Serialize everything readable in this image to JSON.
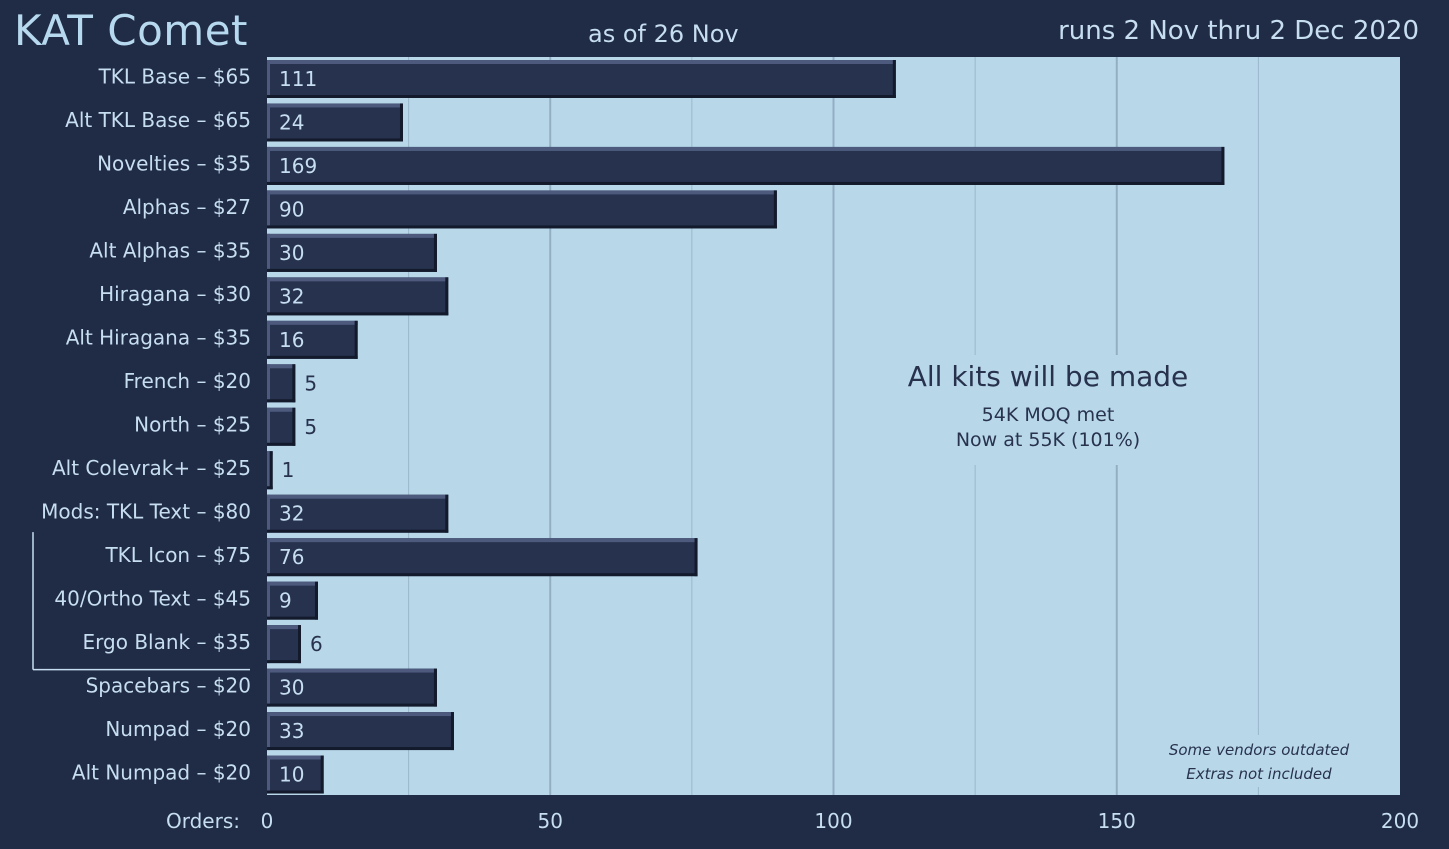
{
  "header": {
    "title": "KAT Comet",
    "subtitle": "as of 26 Nov",
    "runs": "runs 2 Nov thru 2 Dec 2020"
  },
  "chart_data": {
    "type": "bar",
    "orientation": "horizontal",
    "title": "KAT Comet",
    "xlabel": "Orders:",
    "xlim": [
      0,
      200
    ],
    "xticks": [
      0,
      50,
      100,
      150,
      200
    ],
    "grid": true,
    "categories": [
      "TKL Base – $65",
      "Alt TKL Base – $65",
      "Novelties – $35",
      "Alphas – $27",
      "Alt Alphas – $35",
      "Hiragana – $30",
      "Alt Hiragana – $35",
      "French – $20",
      "North – $25",
      "Alt Colevrak+  – $25",
      "Mods:  TKL Text – $80",
      "TKL Icon – $75",
      "40/Ortho Text – $45",
      "Ergo Blank – $35",
      "Spacebars – $20",
      "Numpad – $20",
      "Alt Numpad – $20"
    ],
    "values": [
      111,
      24,
      169,
      90,
      30,
      32,
      16,
      5,
      5,
      1,
      32,
      76,
      9,
      6,
      30,
      33,
      10
    ],
    "annotations": {
      "headline": "All kits will be made",
      "line1": "54K MOQ met",
      "line2": "Now at 55K (101%)",
      "footnote1": "Some vendors outdated",
      "footnote2": "Extras not included"
    },
    "colors": {
      "background": "#202b45",
      "plot_bg": "#b8d8ea",
      "bar": "#27324f",
      "bar_highlight": "#4d5a7d",
      "bar_shadow": "#121a2c",
      "text_light": "#c6def0",
      "text_dark": "#28324d",
      "grid": "#8fa9be"
    }
  }
}
